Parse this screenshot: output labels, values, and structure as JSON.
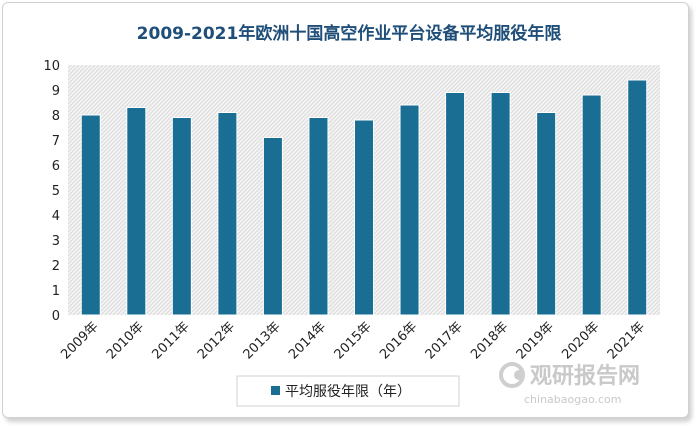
{
  "chart_data": {
    "type": "bar",
    "title": "2009-2021年欧洲十国高空作业平台设备平均服役年限",
    "categories": [
      "2009年",
      "2010年",
      "2011年",
      "2012年",
      "2013年",
      "2014年",
      "2015年",
      "2016年",
      "2017年",
      "2018年",
      "2019年",
      "2020年",
      "2021年"
    ],
    "series": [
      {
        "name": "平均服役年限（年）",
        "values": [
          8.0,
          8.3,
          7.9,
          8.1,
          7.1,
          7.9,
          7.8,
          8.4,
          8.9,
          8.9,
          8.1,
          8.8,
          9.4
        ]
      }
    ],
    "xlabel": "",
    "ylabel": "",
    "ylim": [
      0,
      10
    ],
    "yticks": [
      "0",
      "1",
      "2",
      "3",
      "4",
      "5",
      "6",
      "7",
      "8",
      "9",
      "10"
    ],
    "grid": false,
    "legend_position": "bottom",
    "bar_color": "#1a6e93"
  },
  "watermark": {
    "text": "观研报告网",
    "sub": "chinabaogao.com"
  }
}
